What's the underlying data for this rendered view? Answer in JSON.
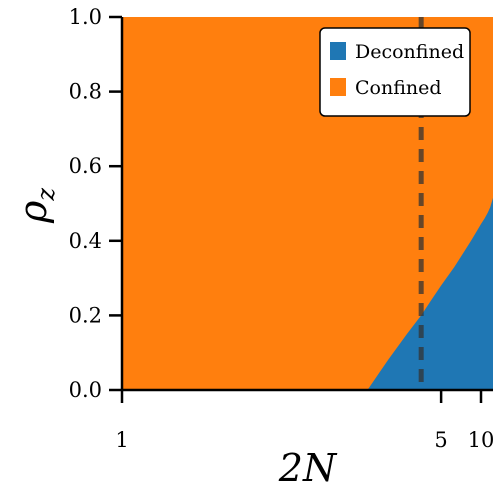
{
  "chart_data": {
    "type": "area",
    "xlabel": "2N",
    "ylabel": "ρ",
    "ylabel_sub": "z",
    "xlim": [
      1,
      14.3
    ],
    "ylim": [
      0,
      1
    ],
    "x_scale": "reciprocal",
    "x_ticks": [
      1,
      5,
      10
    ],
    "x_tick_labels": [
      "1",
      "5",
      "10"
    ],
    "y_ticks": [
      0.0,
      0.2,
      0.4,
      0.6,
      0.8,
      1.0
    ],
    "y_tick_labels": [
      "0.0",
      "0.2",
      "0.4",
      "0.6",
      "0.8",
      "1.0"
    ],
    "legend_position": "top-right",
    "series": [
      {
        "name": "Deconfined",
        "color": "#1f77b4",
        "region": "below-boundary"
      },
      {
        "name": "Confined",
        "color": "#ff7f0e",
        "region": "above-boundary"
      }
    ],
    "boundary": {
      "x": [
        2.6,
        3,
        3.5,
        4,
        4.5,
        5,
        6,
        7,
        8,
        9,
        10,
        11,
        12,
        13,
        14.3
      ],
      "y": [
        0.0,
        0.08,
        0.15,
        0.2,
        0.245,
        0.28,
        0.33,
        0.37,
        0.4,
        0.425,
        0.445,
        0.46,
        0.475,
        0.49,
        0.515
      ]
    },
    "vertical_line": {
      "x": 4,
      "style": "dashed",
      "color": "#333333"
    }
  }
}
